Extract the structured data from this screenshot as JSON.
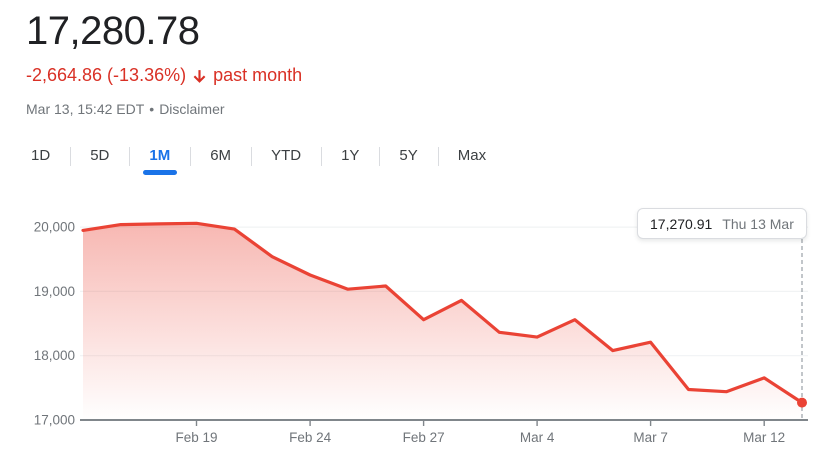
{
  "header": {
    "price": "17,280.78",
    "change": "-2,664.86 (-13.36%)",
    "down_arrow_icon": "arrow-downward",
    "change_period": "past month",
    "timestamp": "Mar 13, 15:42 EDT",
    "separator": "•",
    "disclaimer_label": "Disclaimer"
  },
  "range_tabs": {
    "items": [
      {
        "label": "1D",
        "selected": false
      },
      {
        "label": "5D",
        "selected": false
      },
      {
        "label": "1M",
        "selected": true
      },
      {
        "label": "6M",
        "selected": false
      },
      {
        "label": "YTD",
        "selected": false
      },
      {
        "label": "1Y",
        "selected": false
      },
      {
        "label": "5Y",
        "selected": false
      },
      {
        "label": "Max",
        "selected": false
      }
    ]
  },
  "tooltip": {
    "value": "17,270.91",
    "date": "Thu 13 Mar"
  },
  "chart_data": {
    "type": "area",
    "x": [
      "Feb 13",
      "Feb 14",
      "Feb 18",
      "Feb 19",
      "Feb 20",
      "Feb 21",
      "Feb 24",
      "Feb 25",
      "Feb 26",
      "Feb 27",
      "Feb 28",
      "Mar 3",
      "Mar 4",
      "Mar 5",
      "Mar 6",
      "Mar 7",
      "Mar 10",
      "Mar 11",
      "Mar 12",
      "Mar 13"
    ],
    "values": [
      19950,
      20040,
      20050,
      20060,
      19970,
      19540,
      19255,
      19035,
      19085,
      18560,
      18860,
      18365,
      18290,
      18560,
      18080,
      18210,
      17475,
      17440,
      17655,
      17270.91
    ],
    "last_point": {
      "date": "Thu 13 Mar",
      "value": 17270.91
    },
    "ylim": [
      17000,
      20500
    ],
    "yticks": [
      17000,
      18000,
      19000,
      20000
    ],
    "ytick_labels": [
      "17,000",
      "18,000",
      "19,000",
      "20,000"
    ],
    "xticks": [
      {
        "index": 3,
        "label": "Feb 19"
      },
      {
        "index": 6,
        "label": "Feb 24"
      },
      {
        "index": 9,
        "label": "Feb 27"
      },
      {
        "index": 12,
        "label": "Mar 4"
      },
      {
        "index": 15,
        "label": "Mar 7"
      },
      {
        "index": 18,
        "label": "Mar 12"
      }
    ],
    "grid": true,
    "legend": "none",
    "line_color": "#ea4335",
    "fill_color": "#ea4335",
    "marker_color": "#ea4335"
  },
  "colors": {
    "price_text": "#202124",
    "negative_text": "#d93025",
    "muted_text": "#70757a",
    "accent_blue": "#1a73e8",
    "tab_divider": "#dadce0",
    "gridline": "#f1f3f4",
    "axis_line": "#80868b",
    "dashed_guide": "#9aa0a6"
  }
}
